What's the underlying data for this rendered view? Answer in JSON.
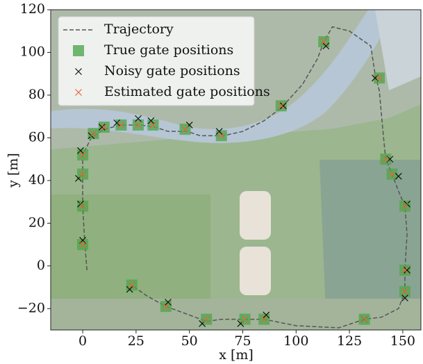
{
  "chart_data": {
    "type": "scatter",
    "xlabel": "x [m]",
    "ylabel": "y [m]",
    "xlim": [
      -15,
      158.5
    ],
    "ylim": [
      -30,
      120
    ],
    "xticks": [
      0,
      25,
      50,
      75,
      100,
      125,
      150
    ],
    "yticks": [
      {
        "value": -20,
        "label": "−20"
      },
      0,
      20,
      40,
      60,
      80,
      100,
      120
    ],
    "legend": "upper left",
    "series": [
      {
        "name": "Trajectory",
        "type": "line",
        "color": "#555555",
        "x": [
          2,
          1,
          0,
          0,
          0,
          4,
          10,
          18,
          27,
          34,
          40,
          49,
          55,
          66,
          75,
          85,
          93,
          103,
          110,
          113,
          117,
          125,
          135,
          137,
          139,
          141,
          142,
          145,
          148,
          151,
          152,
          151,
          151,
          148,
          140,
          132,
          120,
          100,
          85,
          76,
          65,
          58,
          50,
          39,
          30,
          23
        ],
        "y": [
          -2,
          10,
          28,
          42,
          52,
          60,
          64,
          66,
          66,
          65,
          63,
          63,
          61,
          61,
          63,
          68,
          74,
          85,
          97,
          105,
          112,
          110,
          103,
          90,
          82,
          60,
          50,
          43,
          35,
          28,
          15,
          -2,
          -12,
          -20,
          -24,
          -25,
          -29,
          -28,
          -25,
          -25,
          -25,
          -26,
          -23,
          -19,
          -14,
          -9
        ]
      },
      {
        "name": "True gate positions",
        "type": "scatter",
        "marker": "square",
        "color": "#4fa84f",
        "x": [
          0,
          0,
          0,
          0,
          5,
          10,
          18,
          26,
          33,
          48,
          65,
          93,
          113,
          139,
          142,
          145,
          151,
          151,
          151,
          132,
          85,
          76,
          58,
          39,
          23
        ],
        "y": [
          10,
          28,
          43,
          52,
          62,
          65,
          66,
          66,
          66,
          64,
          61,
          75,
          105,
          88,
          50,
          43,
          28,
          -2,
          -12,
          -25,
          -25,
          -25,
          -25,
          -19,
          -9
        ]
      },
      {
        "name": "Noisy gate positions",
        "type": "scatter",
        "marker": "x",
        "color": "#111111",
        "x": [
          0,
          -1,
          -2,
          -1,
          4,
          9,
          16,
          26,
          32,
          50,
          64,
          94,
          114,
          137,
          144,
          148,
          152,
          152,
          151,
          132,
          86,
          74,
          56,
          40,
          22
        ],
        "y": [
          12,
          29,
          41,
          54,
          61,
          65,
          67,
          69,
          68,
          66,
          63,
          75,
          103,
          88,
          50,
          42,
          29,
          -2,
          -15,
          -25,
          -23,
          -27,
          -27,
          -17,
          -11
        ]
      },
      {
        "name": "Estimated gate positions",
        "type": "scatter",
        "marker": "x",
        "color": "#e8643c",
        "x": [
          0,
          0,
          0,
          0,
          5,
          10,
          18,
          26,
          33,
          48,
          65,
          93,
          113,
          139,
          142,
          145,
          151,
          151,
          151,
          132,
          85,
          76,
          58,
          39,
          23
        ],
        "y": [
          10,
          28,
          43,
          52,
          62,
          65,
          66,
          66,
          66,
          64,
          61,
          75,
          105,
          88,
          50,
          43,
          28,
          -2,
          -12,
          -25,
          -25,
          -25,
          -25,
          -19,
          -9
        ]
      }
    ]
  }
}
